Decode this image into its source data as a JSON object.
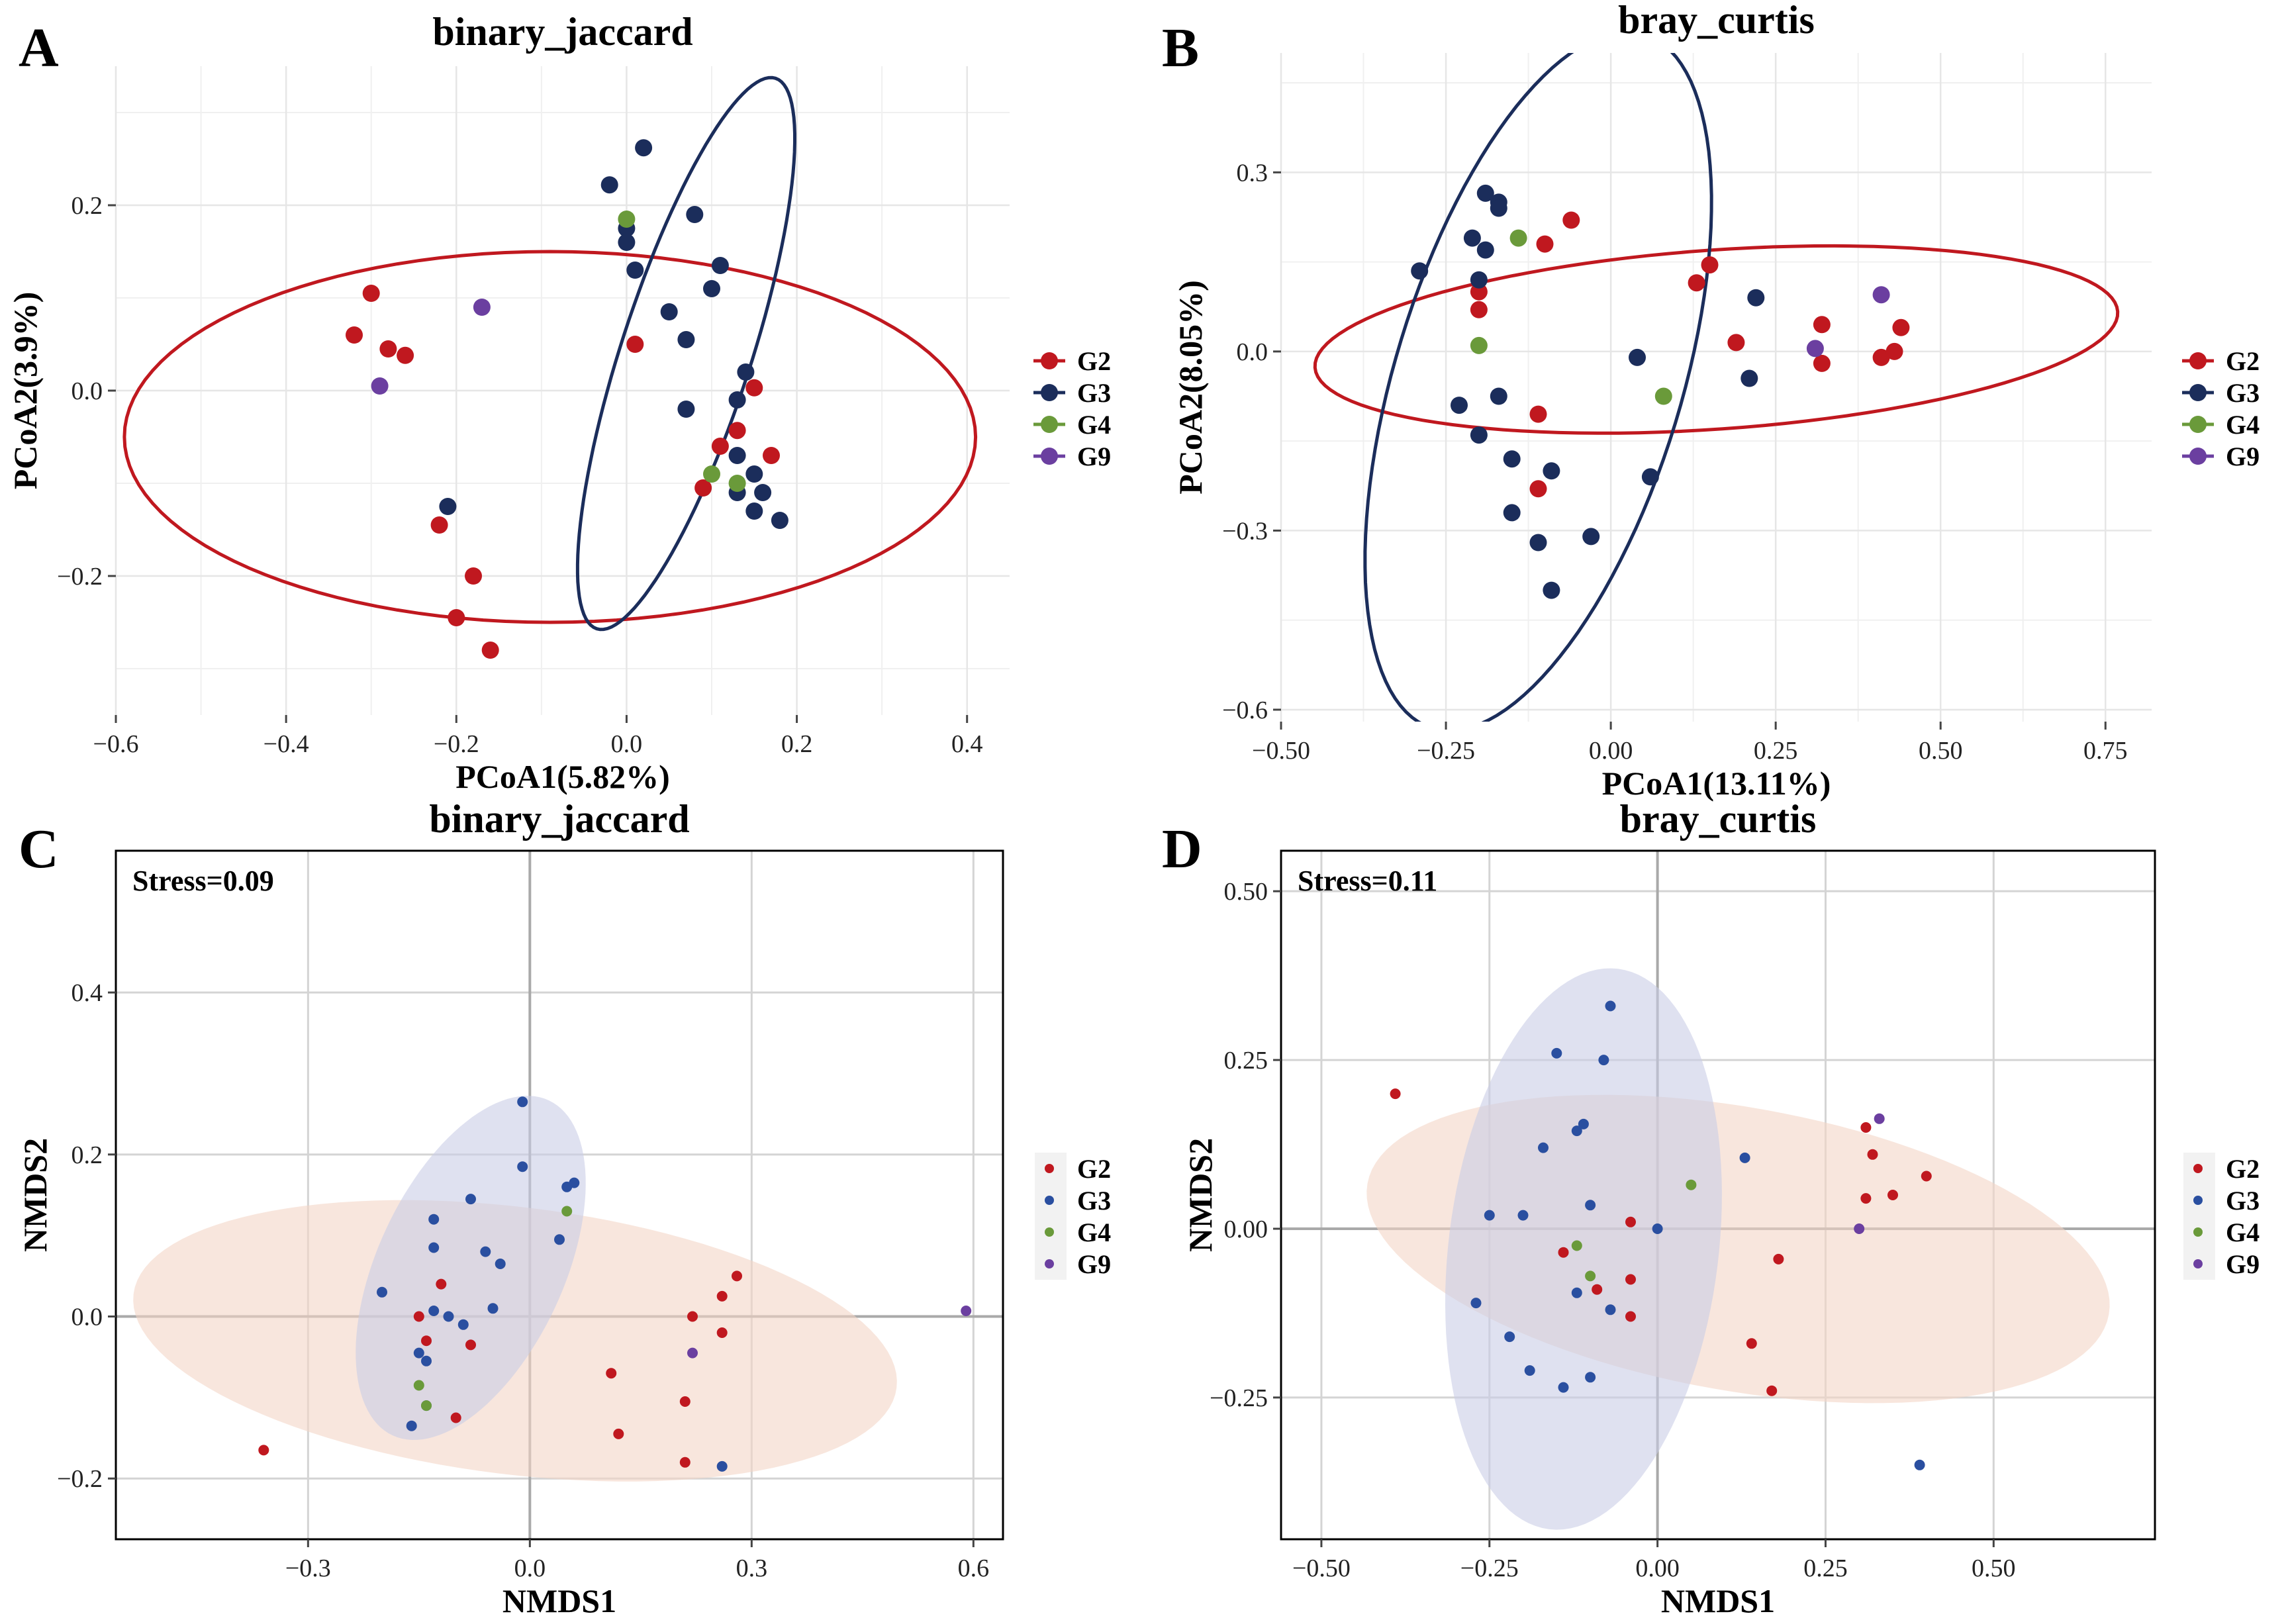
{
  "colors": {
    "G2": "#c0181f",
    "G3": "#1b2d5b",
    "G3_small": "#2a4fa0",
    "G4": "#6a9a3a",
    "G9": "#6b3fa0",
    "ellipse_G2_fill": "#f3d6c6",
    "ellipse_G3_fill": "#c9cde6"
  },
  "chart_data": [
    {
      "id": "A",
      "letter": "A",
      "type": "scatter",
      "title": "binary_jaccard",
      "xlabel": "PCoA1(5.82%)",
      "ylabel": "PCoA2(3.9%)",
      "xlim": [
        -0.6,
        0.45
      ],
      "ylim": [
        -0.35,
        0.35
      ],
      "xticks": [
        -0.6,
        -0.4,
        -0.2,
        0.0,
        0.2,
        0.4
      ],
      "xtick_labels": [
        "−0.6",
        "−0.4",
        "−0.2",
        "0.0",
        "0.2",
        "0.4"
      ],
      "yticks": [
        -0.2,
        0.0,
        0.2
      ],
      "ytick_labels": [
        "−0.2",
        "0.0",
        "0.2"
      ],
      "grid": true,
      "style": "pcoa",
      "legend": [
        "G2",
        "G3",
        "G4",
        "G9"
      ],
      "ellipses": [
        {
          "group": "G2",
          "cx": -0.09,
          "cy": -0.05,
          "rx": 0.5,
          "ry": 0.2,
          "angle": 0,
          "filled": false
        },
        {
          "group": "G3",
          "cx": 0.07,
          "cy": 0.04,
          "rx": 0.34,
          "ry": 0.07,
          "angle": -72,
          "filled": false
        }
      ],
      "series": [
        {
          "name": "G2",
          "points": [
            [
              -0.3,
              0.105
            ],
            [
              -0.32,
              0.06
            ],
            [
              -0.28,
              0.045
            ],
            [
              -0.26,
              0.038
            ],
            [
              0.01,
              0.05
            ],
            [
              -0.22,
              -0.145
            ],
            [
              -0.18,
              -0.2
            ],
            [
              -0.2,
              -0.245
            ],
            [
              -0.16,
              -0.28
            ],
            [
              0.15,
              0.003
            ],
            [
              0.13,
              -0.043
            ],
            [
              0.11,
              -0.06
            ],
            [
              0.17,
              -0.07
            ],
            [
              0.09,
              -0.105
            ]
          ]
        },
        {
          "name": "G3",
          "points": [
            [
              -0.02,
              0.222
            ],
            [
              0.02,
              0.262
            ],
            [
              0.0,
              0.175
            ],
            [
              0.0,
              0.16
            ],
            [
              0.01,
              0.13
            ],
            [
              0.08,
              0.19
            ],
            [
              0.11,
              0.135
            ],
            [
              0.1,
              0.11
            ],
            [
              0.05,
              0.085
            ],
            [
              0.07,
              0.055
            ],
            [
              0.14,
              0.02
            ],
            [
              0.13,
              -0.01
            ],
            [
              0.07,
              -0.02
            ],
            [
              0.13,
              -0.07
            ],
            [
              0.15,
              -0.09
            ],
            [
              0.16,
              -0.11
            ],
            [
              0.13,
              -0.11
            ],
            [
              0.15,
              -0.13
            ],
            [
              0.18,
              -0.14
            ],
            [
              -0.21,
              -0.125
            ]
          ]
        },
        {
          "name": "G4",
          "points": [
            [
              0.0,
              0.185
            ],
            [
              0.1,
              -0.09
            ],
            [
              0.13,
              -0.1
            ]
          ]
        },
        {
          "name": "G9",
          "points": [
            [
              -0.17,
              0.09
            ],
            [
              -0.29,
              0.005
            ]
          ]
        }
      ]
    },
    {
      "id": "B",
      "letter": "B",
      "type": "scatter",
      "title": "bray_curtis",
      "xlabel": "PCoA1(13.11%)",
      "ylabel": "PCoA2(8.05%)",
      "xlim": [
        -0.5,
        0.82
      ],
      "ylim": [
        -0.62,
        0.5
      ],
      "xticks": [
        -0.5,
        -0.25,
        0.0,
        0.25,
        0.5,
        0.75
      ],
      "xtick_labels": [
        "−0.50",
        "−0.25",
        "0.00",
        "0.25",
        "0.50",
        "0.75"
      ],
      "yticks": [
        -0.6,
        -0.3,
        0.0,
        0.3
      ],
      "ytick_labels": [
        "−0.6",
        "−0.3",
        "0.0",
        "0.3"
      ],
      "grid": true,
      "style": "pcoa",
      "legend": [
        "G2",
        "G3",
        "G4",
        "G9"
      ],
      "ellipses": [
        {
          "group": "G2",
          "cx": 0.16,
          "cy": 0.02,
          "rx": 0.61,
          "ry": 0.15,
          "angle": -4,
          "filled": false
        },
        {
          "group": "G3",
          "cx": -0.11,
          "cy": -0.05,
          "rx": 0.55,
          "ry": 0.24,
          "angle": -73,
          "filled": false
        }
      ],
      "series": [
        {
          "name": "G2",
          "points": [
            [
              -0.2,
              0.1
            ],
            [
              -0.2,
              0.07
            ],
            [
              -0.06,
              0.22
            ],
            [
              -0.1,
              0.18
            ],
            [
              0.15,
              0.145
            ],
            [
              0.13,
              0.115
            ],
            [
              0.19,
              0.015
            ],
            [
              0.32,
              0.045
            ],
            [
              0.32,
              -0.02
            ],
            [
              0.41,
              -0.01
            ],
            [
              0.43,
              0.0
            ],
            [
              0.44,
              0.04
            ],
            [
              -0.11,
              -0.105
            ],
            [
              -0.11,
              -0.23
            ]
          ]
        },
        {
          "name": "G3",
          "points": [
            [
              -0.29,
              0.135
            ],
            [
              -0.19,
              0.265
            ],
            [
              -0.17,
              0.25
            ],
            [
              -0.17,
              0.24
            ],
            [
              -0.21,
              0.19
            ],
            [
              -0.19,
              0.17
            ],
            [
              -0.2,
              0.12
            ],
            [
              -0.23,
              -0.09
            ],
            [
              -0.17,
              -0.075
            ],
            [
              -0.2,
              -0.14
            ],
            [
              -0.15,
              -0.18
            ],
            [
              -0.09,
              -0.2
            ],
            [
              -0.15,
              -0.27
            ],
            [
              -0.11,
              -0.32
            ],
            [
              -0.03,
              -0.31
            ],
            [
              -0.09,
              -0.4
            ],
            [
              0.06,
              -0.21
            ],
            [
              0.04,
              -0.01
            ],
            [
              0.22,
              0.09
            ],
            [
              0.21,
              -0.045
            ]
          ]
        },
        {
          "name": "G4",
          "points": [
            [
              -0.14,
              0.19
            ],
            [
              -0.2,
              0.01
            ],
            [
              0.08,
              -0.075
            ]
          ]
        },
        {
          "name": "G9",
          "points": [
            [
              0.41,
              0.095
            ],
            [
              0.31,
              0.005
            ]
          ]
        }
      ]
    },
    {
      "id": "C",
      "letter": "C",
      "type": "scatter",
      "title": "binary_jaccard",
      "xlabel": "NMDS1",
      "ylabel": "NMDS2",
      "xlim": [
        -0.56,
        0.64
      ],
      "ylim": [
        -0.275,
        0.575
      ],
      "xticks": [
        -0.3,
        0.0,
        0.3,
        0.6
      ],
      "xtick_labels": [
        "−0.3",
        "0.0",
        "0.3",
        "0.6"
      ],
      "yticks": [
        -0.2,
        0.0,
        0.2,
        0.4
      ],
      "ytick_labels": [
        "−0.2",
        "0.0",
        "0.2",
        "0.4"
      ],
      "grid": true,
      "style": "nmds",
      "stress": "Stress=0.09",
      "legend": [
        "G2",
        "G3",
        "G4",
        "G9"
      ],
      "ellipses": [
        {
          "group": "G2",
          "cx": -0.02,
          "cy": -0.03,
          "rx": 0.52,
          "ry": 0.165,
          "angle": 7,
          "filled": true
        },
        {
          "group": "G3",
          "cx": -0.08,
          "cy": 0.06,
          "rx": 0.25,
          "ry": 0.115,
          "angle": -65,
          "filled": true
        }
      ],
      "series": [
        {
          "name": "G2",
          "points": [
            [
              -0.36,
              -0.165
            ],
            [
              -0.15,
              0.0
            ],
            [
              -0.14,
              -0.03
            ],
            [
              -0.12,
              0.04
            ],
            [
              -0.08,
              -0.035
            ],
            [
              -0.1,
              -0.125
            ],
            [
              0.11,
              -0.07
            ],
            [
              0.12,
              -0.145
            ],
            [
              0.21,
              -0.18
            ],
            [
              0.21,
              -0.105
            ],
            [
              0.22,
              0.0
            ],
            [
              0.26,
              0.025
            ],
            [
              0.26,
              -0.02
            ],
            [
              0.28,
              0.05
            ]
          ]
        },
        {
          "name": "G3",
          "points": [
            [
              -0.01,
              0.265
            ],
            [
              -0.13,
              0.12
            ],
            [
              -0.13,
              0.085
            ],
            [
              -0.08,
              0.145
            ],
            [
              -0.06,
              0.08
            ],
            [
              -0.04,
              0.065
            ],
            [
              -0.01,
              0.185
            ],
            [
              0.04,
              0.095
            ],
            [
              0.05,
              0.16
            ],
            [
              0.06,
              0.165
            ],
            [
              -0.2,
              0.03
            ],
            [
              -0.13,
              0.007
            ],
            [
              -0.11,
              0.0
            ],
            [
              -0.09,
              -0.01
            ],
            [
              -0.05,
              0.01
            ],
            [
              -0.15,
              -0.045
            ],
            [
              -0.14,
              -0.055
            ],
            [
              -0.14,
              -0.11
            ],
            [
              -0.16,
              -0.135
            ],
            [
              0.26,
              -0.185
            ]
          ]
        },
        {
          "name": "G4",
          "points": [
            [
              0.05,
              0.13
            ],
            [
              -0.15,
              -0.085
            ],
            [
              -0.14,
              -0.11
            ]
          ]
        },
        {
          "name": "G9",
          "points": [
            [
              0.59,
              0.007
            ],
            [
              0.22,
              -0.045
            ]
          ]
        }
      ]
    },
    {
      "id": "D",
      "letter": "D",
      "type": "scatter",
      "title": "bray_curtis",
      "xlabel": "NMDS1",
      "ylabel": "NMDS2",
      "xlim": [
        -0.56,
        0.74
      ],
      "ylim": [
        -0.46,
        0.56
      ],
      "xticks": [
        -0.5,
        -0.25,
        0.0,
        0.25,
        0.5
      ],
      "xtick_labels": [
        "−0.50",
        "−0.25",
        "0.00",
        "0.25",
        "0.50"
      ],
      "yticks": [
        -0.25,
        0.0,
        0.25,
        0.5
      ],
      "ytick_labels": [
        "−0.25",
        "0.00",
        "0.25",
        "0.50"
      ],
      "grid": true,
      "style": "nmds",
      "stress": "Stress=0.11",
      "legend": [
        "G2",
        "G3",
        "G4",
        "G9"
      ],
      "ellipses": [
        {
          "group": "G2",
          "cx": 0.12,
          "cy": -0.03,
          "rx": 0.56,
          "ry": 0.21,
          "angle": 10,
          "filled": true
        },
        {
          "group": "G3",
          "cx": -0.11,
          "cy": -0.03,
          "rx": 0.42,
          "ry": 0.2,
          "angle": -83,
          "filled": true
        }
      ],
      "series": [
        {
          "name": "G2",
          "points": [
            [
              -0.39,
              0.2
            ],
            [
              -0.04,
              0.01
            ],
            [
              -0.14,
              -0.035
            ],
            [
              -0.09,
              -0.09
            ],
            [
              -0.04,
              -0.075
            ],
            [
              -0.04,
              -0.13
            ],
            [
              0.18,
              -0.045
            ],
            [
              0.14,
              -0.17
            ],
            [
              0.17,
              -0.24
            ],
            [
              0.31,
              0.15
            ],
            [
              0.32,
              0.11
            ],
            [
              0.31,
              0.045
            ],
            [
              0.35,
              0.05
            ],
            [
              0.4,
              0.078
            ]
          ]
        },
        {
          "name": "G3",
          "points": [
            [
              -0.07,
              0.33
            ],
            [
              -0.15,
              0.26
            ],
            [
              -0.08,
              0.25
            ],
            [
              -0.12,
              0.145
            ],
            [
              -0.11,
              0.155
            ],
            [
              -0.17,
              0.12
            ],
            [
              0.13,
              0.105
            ],
            [
              -0.2,
              0.02
            ],
            [
              -0.25,
              0.02
            ],
            [
              -0.1,
              0.035
            ],
            [
              0.0,
              0.0
            ],
            [
              -0.27,
              -0.11
            ],
            [
              -0.12,
              -0.095
            ],
            [
              -0.07,
              -0.12
            ],
            [
              -0.22,
              -0.16
            ],
            [
              -0.19,
              -0.21
            ],
            [
              -0.14,
              -0.235
            ],
            [
              -0.1,
              -0.22
            ],
            [
              0.39,
              -0.35
            ]
          ]
        },
        {
          "name": "G4",
          "points": [
            [
              0.05,
              0.065
            ],
            [
              -0.12,
              -0.025
            ],
            [
              -0.1,
              -0.07
            ]
          ]
        },
        {
          "name": "G9",
          "points": [
            [
              0.33,
              0.163
            ],
            [
              0.3,
              0.0
            ]
          ]
        }
      ]
    }
  ]
}
